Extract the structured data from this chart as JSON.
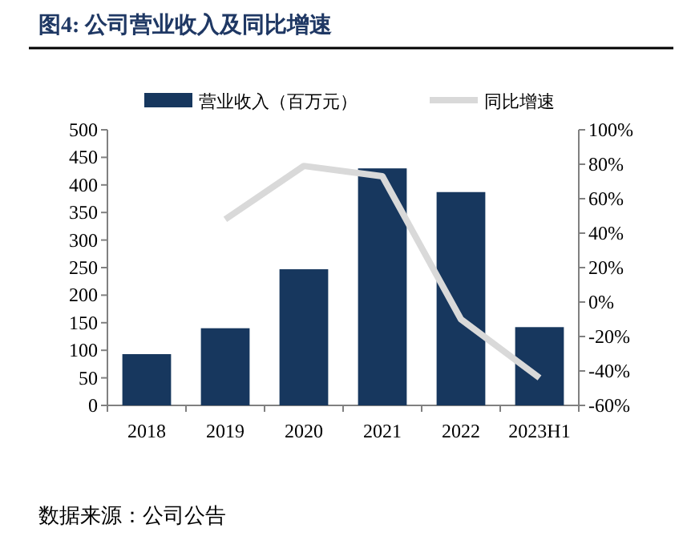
{
  "chart_data": {
    "type": "bar",
    "title": "图4:  公司营业收入及同比增速",
    "categories": [
      "2018",
      "2019",
      "2020",
      "2021",
      "2022",
      "2023H1"
    ],
    "series": [
      {
        "name": "营业收入（百万元）",
        "color": "#17375e",
        "values": [
          93,
          140,
          247,
          430,
          387,
          142
        ]
      },
      {
        "name": "同比增速",
        "type": "line",
        "axis": "y2",
        "color": "#d9d9d9",
        "values": [
          null,
          48,
          79,
          73,
          -10,
          -44
        ]
      }
    ],
    "ylim": [
      0,
      500
    ],
    "yticks": [
      0,
      50,
      100,
      150,
      200,
      250,
      300,
      350,
      400,
      450,
      500
    ],
    "y2lim": [
      -60,
      100
    ],
    "y2ticks": [
      {
        "value": -60,
        "label": "-60%"
      },
      {
        "value": -40,
        "label": "-40%"
      },
      {
        "value": -20,
        "label": "-20%"
      },
      {
        "value": 0,
        "label": "0%"
      },
      {
        "value": 20,
        "label": "20%"
      },
      {
        "value": 40,
        "label": "40%"
      },
      {
        "value": 60,
        "label": "60%"
      },
      {
        "value": 80,
        "label": "80%"
      },
      {
        "value": 100,
        "label": "100%"
      }
    ],
    "legend": "top",
    "annotations": [
      "数据来源：公司公告"
    ]
  }
}
